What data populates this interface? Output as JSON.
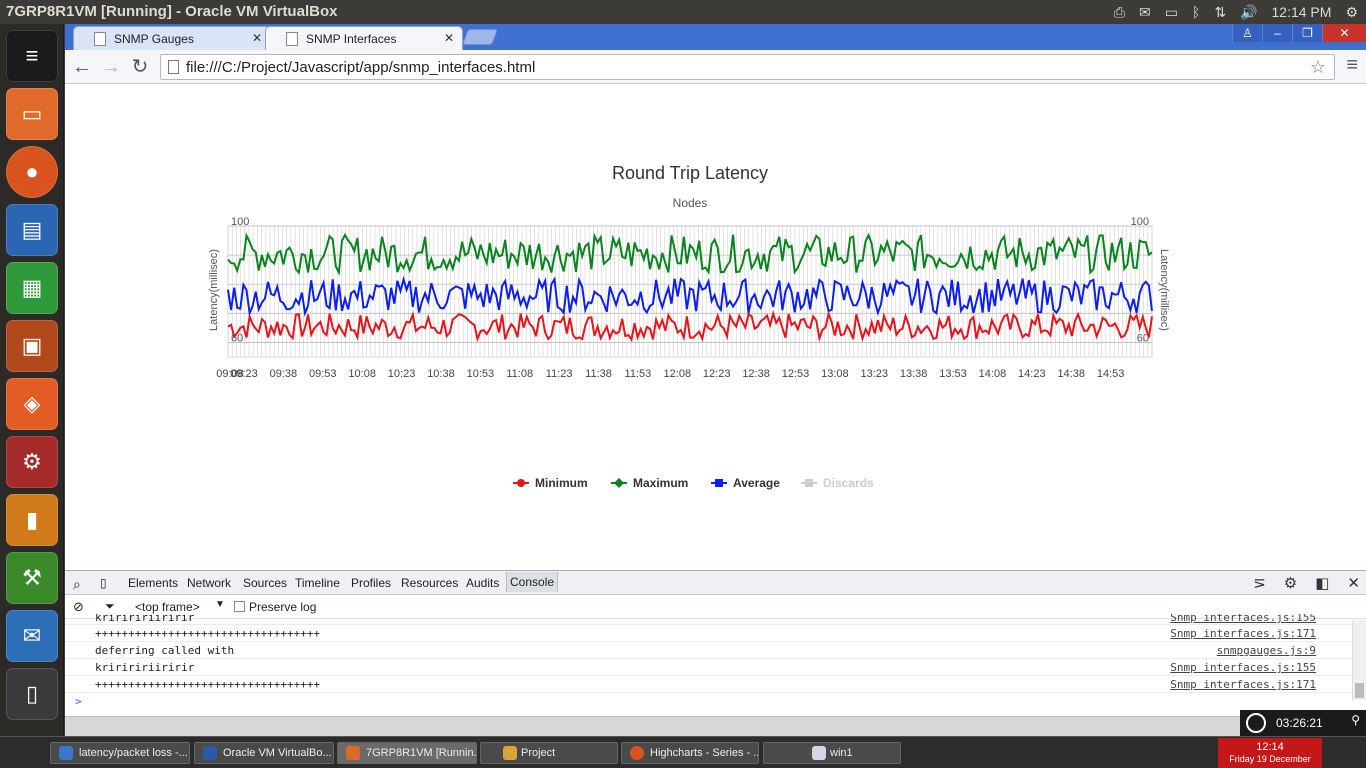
{
  "system": {
    "vm_title": "7GRP8R1VM [Running] - Oracle VM VirtualBox",
    "clock": "12:14 PM"
  },
  "browser": {
    "tabs": [
      {
        "label": "SNMP Gauges"
      },
      {
        "label": "SNMP Interfaces"
      }
    ],
    "url": "file:///C:/Project/Javascript/app/snmp_interfaces.html"
  },
  "chart_data": {
    "type": "line",
    "title": "Round Trip Latency",
    "subtitle": "Nodes",
    "ylabel": "Latency(millisec)",
    "y_ticks": [
      "100",
      "60"
    ],
    "ylim": [
      55,
      100
    ],
    "x_ticks": [
      "09:08",
      "09:23",
      "09:38",
      "09:53",
      "10:08",
      "10:23",
      "10:38",
      "10:53",
      "11:08",
      "11:23",
      "11:38",
      "11:53",
      "12:08",
      "12:23",
      "12:38",
      "12:53",
      "13:08",
      "13:23",
      "13:38",
      "13:53",
      "14:08",
      "14:23",
      "14:38",
      "14:53"
    ],
    "grid": true,
    "legend_position": "bottom",
    "series": [
      {
        "name": "Minimum",
        "color": "#e8141b",
        "values_range": [
          61,
          70
        ]
      },
      {
        "name": "Maximum",
        "color": "#08841d",
        "values_range": [
          84,
          97
        ]
      },
      {
        "name": "Average",
        "color": "#0d1ff0",
        "values_range": [
          70,
          82
        ]
      },
      {
        "name": "Discards",
        "color": "#cccccc",
        "hidden": true
      }
    ]
  },
  "devtools": {
    "tabs": [
      "Elements",
      "Network",
      "Sources",
      "Timeline",
      "Profiles",
      "Resources",
      "Audits",
      "Console"
    ],
    "frame": "<top frame>",
    "preserve_log": "Preserve log",
    "console_lines": [
      {
        "text": "kririririiririr",
        "src": "Snmp interfaces.js:155"
      },
      {
        "text": "++++++++++++++++++++++++++++++++++",
        "src": "Snmp interfaces.js:171"
      },
      {
        "text": "deferring called with",
        "src": "snmpgauges.js:9"
      },
      {
        "text": "kririririiririr",
        "src": "Snmp interfaces.js:155"
      },
      {
        "text": "++++++++++++++++++++++++++++++++++",
        "src": "Snmp interfaces.js:171"
      }
    ],
    "prompt": ">"
  },
  "host": {
    "time_widget": "03:26:21",
    "taskbar_items": [
      "latency/packet loss -...",
      "Oracle VM VirtualBo...",
      "7GRP8R1VM [Runnin...",
      "Project",
      "Highcharts - Series - ...",
      "win1"
    ],
    "clock_time": "12:14",
    "clock_date": "Friday 19 December"
  }
}
